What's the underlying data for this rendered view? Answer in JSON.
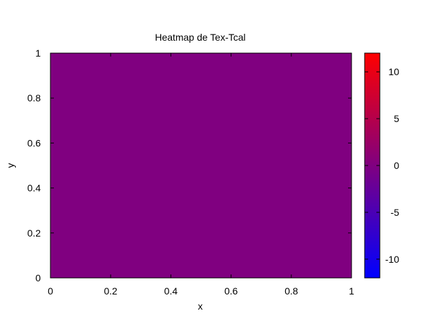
{
  "chart_data": {
    "type": "heatmap",
    "title": "Heatmap de Tex-Tcal",
    "xlabel": "x",
    "ylabel": "y",
    "xlim": [
      0,
      1
    ],
    "ylim": [
      0,
      1
    ],
    "x_ticks": [
      0,
      0.2,
      0.4,
      0.6,
      0.8,
      1
    ],
    "y_ticks": [
      0,
      0.2,
      0.4,
      0.6,
      0.8,
      1
    ],
    "x_tick_labels": [
      "0",
      "0.2",
      "0.4",
      "0.6",
      "0.8",
      "1"
    ],
    "y_tick_labels": [
      "0",
      "0.2",
      "0.4",
      "0.6",
      "0.8",
      "1"
    ],
    "value": 0,
    "colorbar": {
      "range": [
        -12,
        12
      ],
      "ticks": [
        10,
        5,
        0,
        -5,
        -10
      ],
      "tick_labels": [
        "10",
        "5",
        "0",
        "-5",
        "-10"
      ],
      "low_color": "#0000ff",
      "mid_color": "#800080",
      "high_color": "#ff0000"
    },
    "fill_color": "#800080",
    "grid": false
  }
}
